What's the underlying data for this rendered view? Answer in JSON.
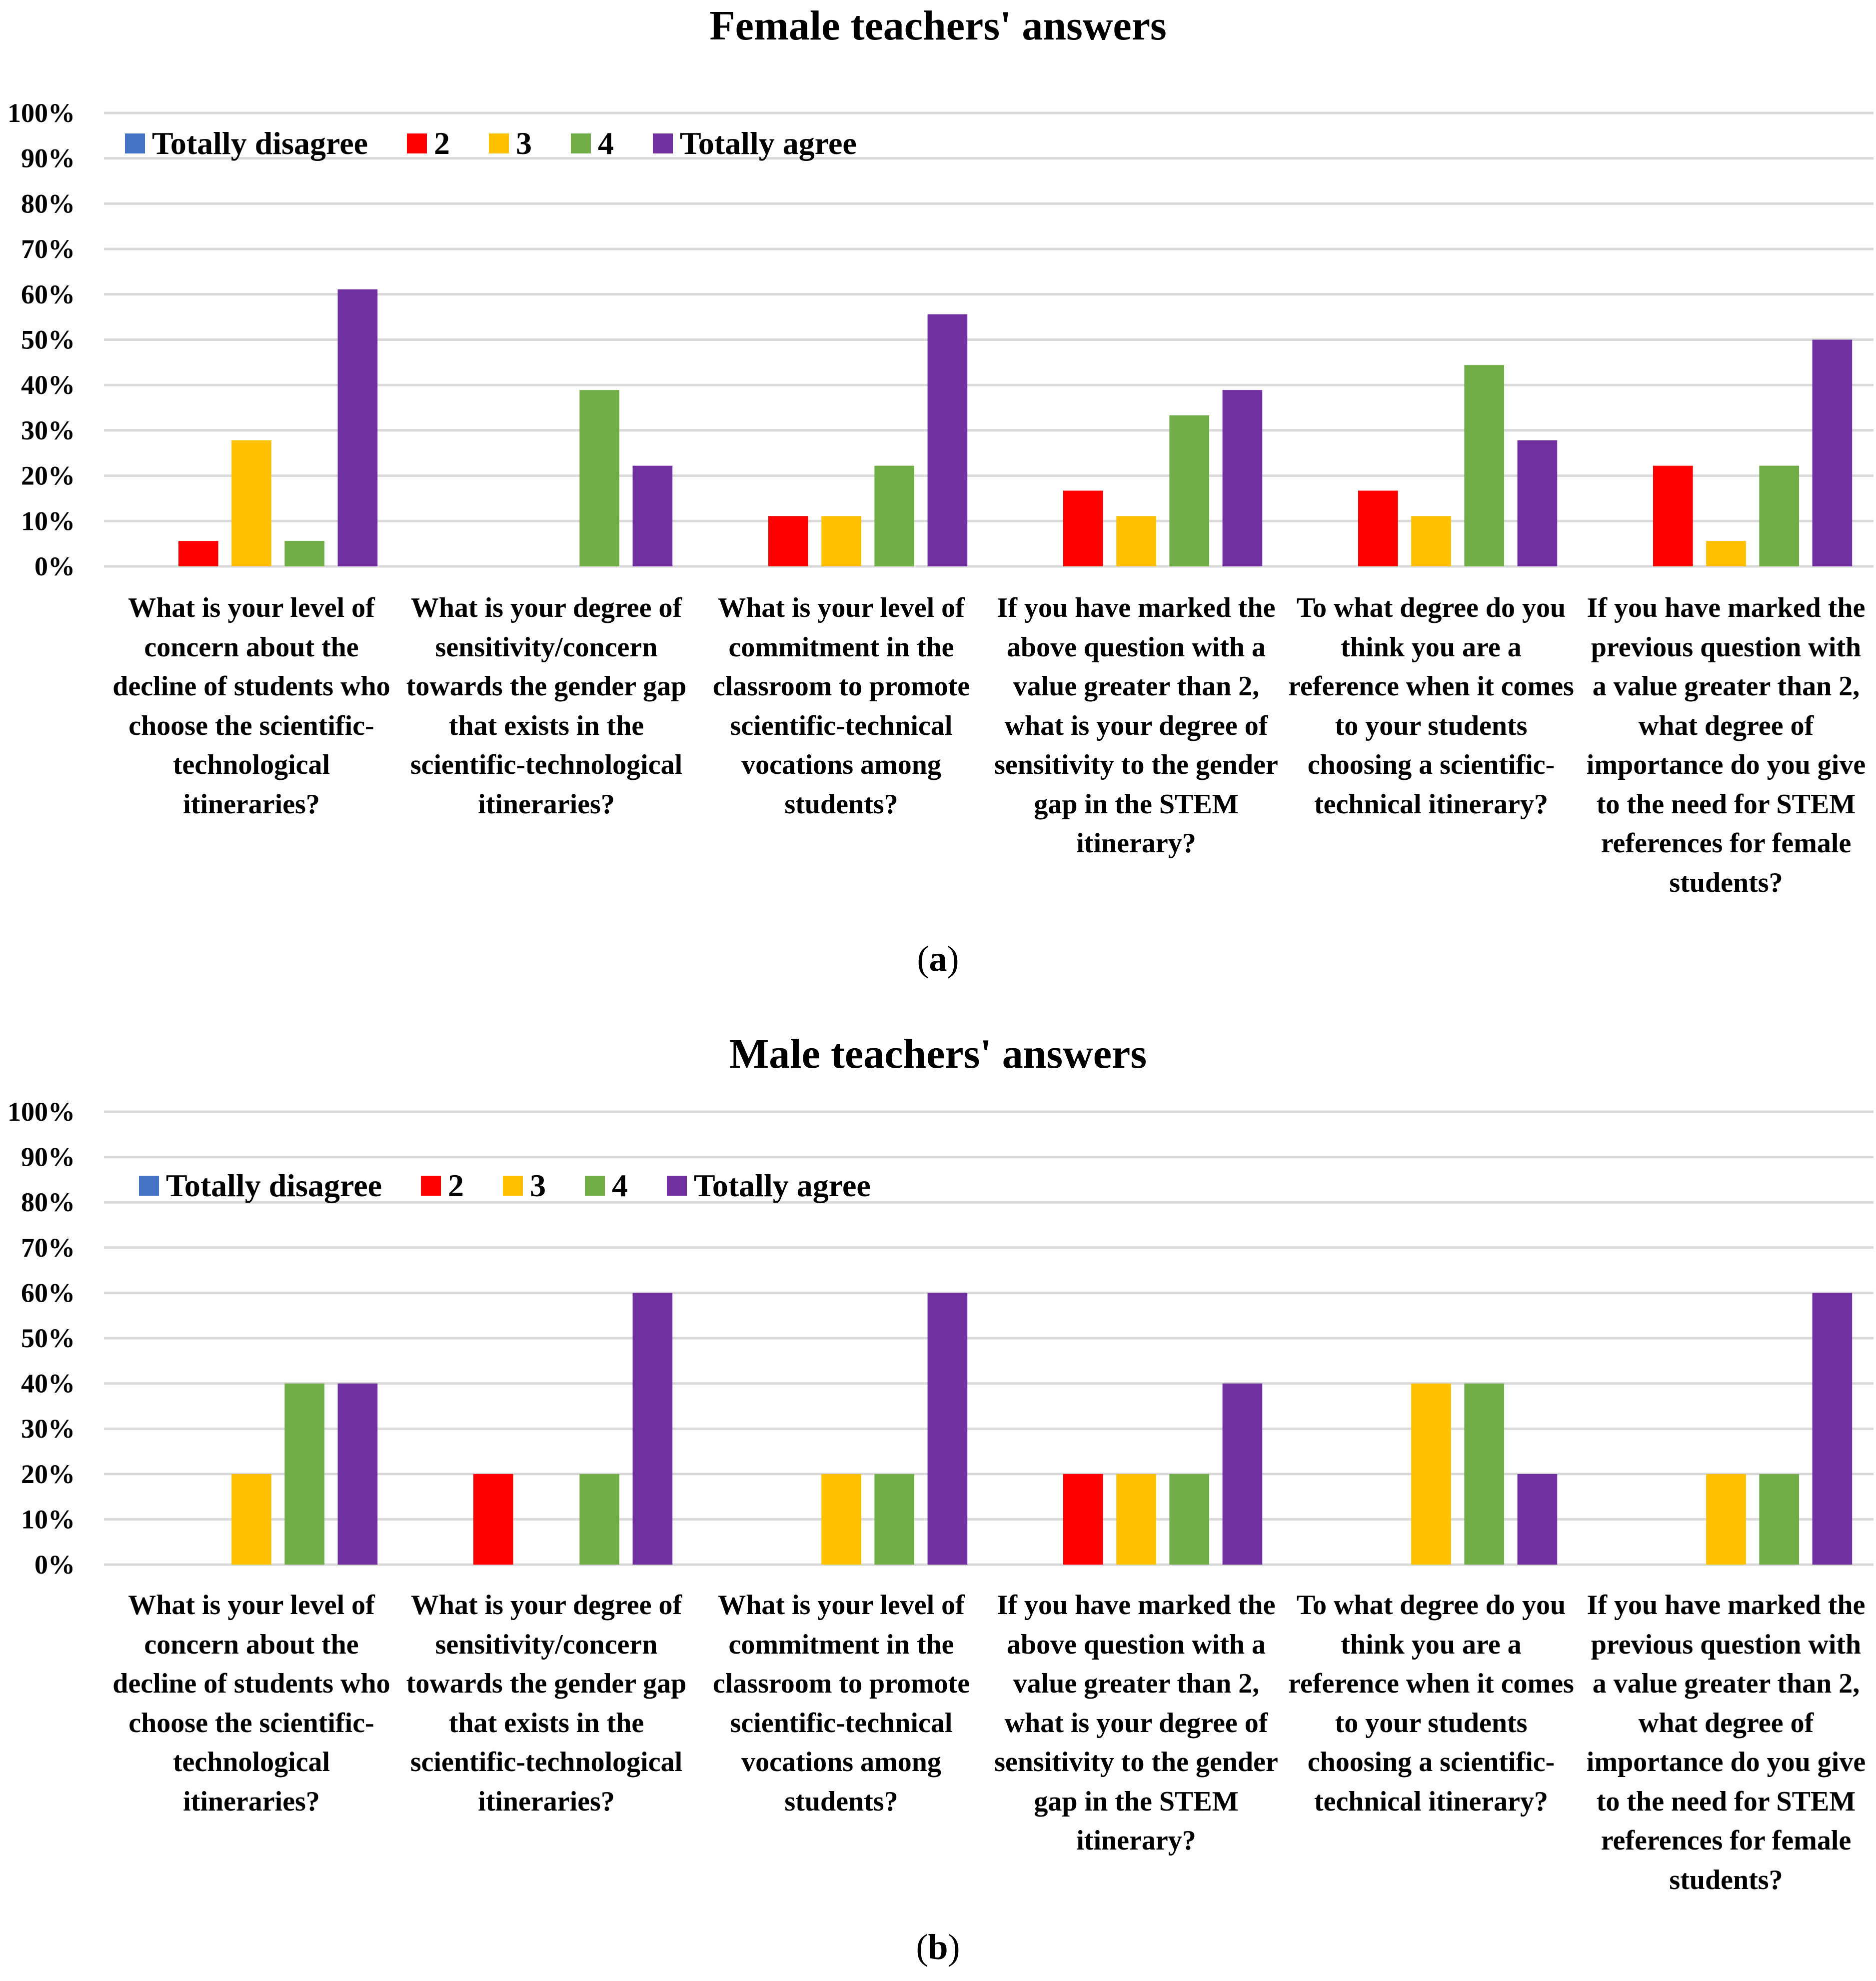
{
  "colors": {
    "Totally disagree": "#4472C4",
    "2": "#FF0000",
    "3": "#FFC000",
    "4": "#70AD47",
    "Totally agree": "#7030A0",
    "grid": "#D9D9D9"
  },
  "chart_data": [
    {
      "type": "bar",
      "title": "Female teachers' answers",
      "panel_label": {
        "open": "(",
        "letter": "a",
        "close": ")"
      },
      "ylim": [
        0,
        100
      ],
      "yticks": [
        "0%",
        "10%",
        "20%",
        "30%",
        "40%",
        "50%",
        "60%",
        "70%",
        "80%",
        "90%",
        "100%"
      ],
      "legend": [
        "Totally disagree",
        "2",
        "3",
        "4",
        "Totally agree"
      ],
      "categories": [
        "What is your level of concern about the decline of students who choose the scientific-technological itineraries?",
        "What is your degree of sensitivity/concern towards the gender gap that exists in the scientific-technological itineraries?",
        "What is your level of commitment in the classroom to promote scientific-technical vocations among students?",
        "If you have marked the above question with a value greater than 2, what is your degree of sensitivity to the gender gap in the STEM itinerary?",
        "To what degree do you think you are a reference when it comes to your students choosing a scientific-technical itinerary?",
        "If you have marked the previous question with a value greater than 2, what degree of importance do you give to the need for STEM references for female students?"
      ],
      "series": [
        {
          "name": "Totally disagree",
          "values": [
            0,
            0,
            0,
            0,
            0,
            0
          ]
        },
        {
          "name": "2",
          "values": [
            5.6,
            0,
            11.1,
            16.7,
            16.7,
            22.2
          ]
        },
        {
          "name": "3",
          "values": [
            27.8,
            0,
            11.1,
            11.1,
            11.1,
            5.6
          ]
        },
        {
          "name": "4",
          "values": [
            5.6,
            38.9,
            22.2,
            33.3,
            44.4,
            22.2
          ]
        },
        {
          "name": "Totally agree",
          "values": [
            61.1,
            22.2,
            55.6,
            38.9,
            27.8,
            50.0
          ]
        }
      ]
    },
    {
      "type": "bar",
      "title": "Male teachers' answers",
      "panel_label": {
        "open": "(",
        "letter": "b",
        "close": ")"
      },
      "ylim": [
        0,
        100
      ],
      "yticks": [
        "0%",
        "10%",
        "20%",
        "30%",
        "40%",
        "50%",
        "60%",
        "70%",
        "80%",
        "90%",
        "100%"
      ],
      "legend": [
        "Totally disagree",
        "2",
        "3",
        "4",
        "Totally agree"
      ],
      "categories": [
        "What is your level of concern about the decline of students who choose the scientific-technological itineraries?",
        "What is your degree of sensitivity/concern towards the gender gap that exists in the scientific-technological itineraries?",
        "What is your level of commitment in the classroom to promote scientific-technical vocations among students?",
        "If you have marked the above question with a value greater than 2, what is your degree of sensitivity to the gender gap in the STEM itinerary?",
        "To what degree do you think you are a reference when it comes to your students choosing a scientific-technical itinerary?",
        "If you have marked the previous question with a value greater than 2, what degree of importance do you give to the need for STEM references for female students?"
      ],
      "series": [
        {
          "name": "Totally disagree",
          "values": [
            0,
            0,
            0,
            0,
            0,
            0
          ]
        },
        {
          "name": "2",
          "values": [
            0,
            20,
            0,
            20,
            0,
            0
          ]
        },
        {
          "name": "3",
          "values": [
            20,
            0,
            20,
            20,
            40,
            20
          ]
        },
        {
          "name": "4",
          "values": [
            40,
            20,
            20,
            20,
            40,
            20
          ]
        },
        {
          "name": "Totally agree",
          "values": [
            40,
            60,
            60,
            40,
            20,
            60
          ]
        }
      ]
    }
  ]
}
